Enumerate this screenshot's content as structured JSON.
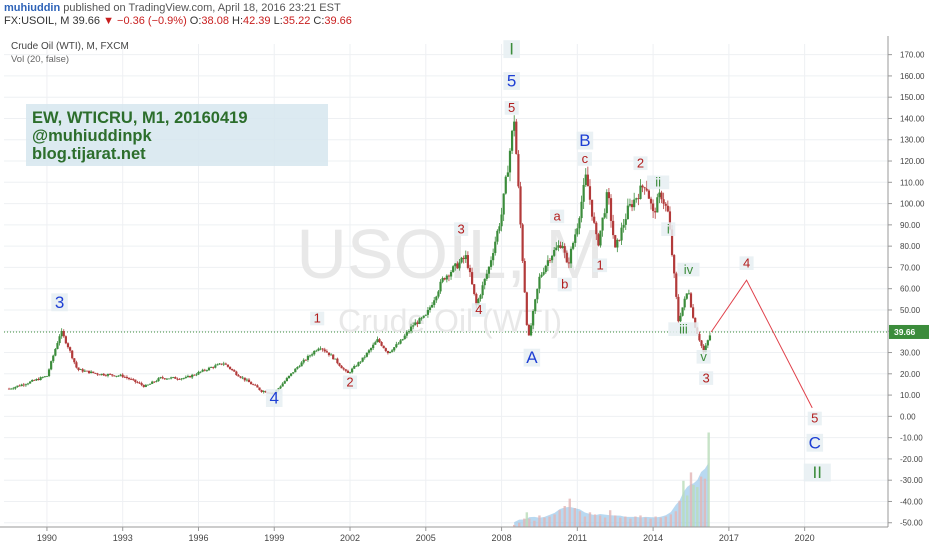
{
  "header": {
    "author": "muhiuddin",
    "published": "published on TradingView.com, April 18, 2016 23:21 EST",
    "symbol": "FX:USOIL, M",
    "last": "39.66",
    "arrow": "▼",
    "change": "−0.36 (−0.9%)",
    "open_label": "O:",
    "open": "38.08",
    "high_label": "H:",
    "high": "42.39",
    "low_label": "L:",
    "low": "35.22",
    "close_label": "C:",
    "close": "39.66"
  },
  "chart_info": {
    "instrument": "Crude Oil (WTI), M, FXCM",
    "volume": "Vol (20, false)",
    "watermark_symbol": "USOIL, M",
    "watermark_name": "Crude Oil (WTI)"
  },
  "annotation_box": {
    "line1": "EW, WTICRU, M1,  20160419",
    "line2": "@muhiuddinpk",
    "line3": "blog.tijarat.net"
  },
  "price_badge": "39.66",
  "colors": {
    "up": "#3b8c3b",
    "down": "#b23a3a",
    "blue_label": "#1e3fd4",
    "red_label": "#b21e1e",
    "green_label": "#3b8c3b",
    "projection": "#e0404a",
    "current_price_line": "#3b8c3b",
    "annotation_bg": "#d6e6ee"
  },
  "chart_data": {
    "type": "line",
    "y_ticks": [
      "170.00",
      "160.00",
      "150.00",
      "140.00",
      "130.00",
      "120.00",
      "110.00",
      "100.00",
      "90.00",
      "80.00",
      "70.00",
      "60.00",
      "50.00",
      "40.00",
      "30.00",
      "20.00",
      "10.00",
      "0.00",
      "-10.00",
      "-20.00",
      "-30.00",
      "-40.00",
      "-50.00"
    ],
    "x_ticks": [
      "1990",
      "1993",
      "1996",
      "1999",
      "2002",
      "2005",
      "2008",
      "2011",
      "2014",
      "2017",
      "2020"
    ],
    "ylim": [
      -52,
      175
    ],
    "xlim": [
      1988.3,
      2023.3
    ],
    "current_price": 39.66,
    "price_anchors": [
      [
        1988.5,
        13
      ],
      [
        1989.3,
        16
      ],
      [
        1990.0,
        19
      ],
      [
        1990.55,
        40
      ],
      [
        1990.8,
        34
      ],
      [
        1991.2,
        22
      ],
      [
        1992.0,
        20
      ],
      [
        1993.0,
        19
      ],
      [
        1993.9,
        14
      ],
      [
        1994.5,
        18
      ],
      [
        1995.5,
        18
      ],
      [
        1996.5,
        23
      ],
      [
        1997.0,
        25
      ],
      [
        1997.5,
        20
      ],
      [
        1998.5,
        12
      ],
      [
        1999.0,
        11
      ],
      [
        1999.9,
        23
      ],
      [
        2000.8,
        33
      ],
      [
        2001.3,
        28
      ],
      [
        2001.9,
        20
      ],
      [
        2002.5,
        27
      ],
      [
        2003.1,
        36
      ],
      [
        2003.5,
        30
      ],
      [
        2004.0,
        35
      ],
      [
        2004.5,
        43
      ],
      [
        2005.0,
        47
      ],
      [
        2005.7,
        65
      ],
      [
        2006.6,
        75
      ],
      [
        2007.0,
        52
      ],
      [
        2007.5,
        70
      ],
      [
        2008.0,
        95
      ],
      [
        2008.5,
        140
      ],
      [
        2008.8,
        80
      ],
      [
        2009.05,
        35
      ],
      [
        2009.5,
        65
      ],
      [
        2009.9,
        75
      ],
      [
        2010.4,
        82
      ],
      [
        2010.6,
        70
      ],
      [
        2011.0,
        90
      ],
      [
        2011.35,
        113
      ],
      [
        2011.8,
        80
      ],
      [
        2012.2,
        105
      ],
      [
        2012.5,
        78
      ],
      [
        2013.0,
        97
      ],
      [
        2013.7,
        110
      ],
      [
        2014.0,
        95
      ],
      [
        2014.3,
        105
      ],
      [
        2014.6,
        95
      ],
      [
        2015.0,
        45
      ],
      [
        2015.4,
        60
      ],
      [
        2015.6,
        45
      ],
      [
        2016.0,
        30
      ],
      [
        2016.15,
        35
      ],
      [
        2016.3,
        39.66
      ]
    ],
    "projection": [
      [
        2016.3,
        39.66
      ],
      [
        2017.7,
        64
      ],
      [
        2020.3,
        4
      ]
    ],
    "wave_labels": [
      {
        "t": "3",
        "x": 1990.5,
        "y": 51,
        "c": "blue"
      },
      {
        "t": "4",
        "x": 1999.0,
        "y": 6,
        "c": "blue"
      },
      {
        "t": "1",
        "x": 2000.7,
        "y": 44,
        "c": "red"
      },
      {
        "t": "2",
        "x": 2002.0,
        "y": 14,
        "c": "red"
      },
      {
        "t": "3",
        "x": 2006.4,
        "y": 86,
        "c": "red"
      },
      {
        "t": "4",
        "x": 2007.1,
        "y": 48,
        "c": "red"
      },
      {
        "t": "I",
        "x": 2008.4,
        "y": 170,
        "c": "green"
      },
      {
        "t": "5",
        "x": 2008.4,
        "y": 155,
        "c": "blue"
      },
      {
        "t": "5",
        "x": 2008.4,
        "y": 143,
        "c": "red"
      },
      {
        "t": "A",
        "x": 2009.2,
        "y": 25,
        "c": "blue"
      },
      {
        "t": "a",
        "x": 2010.2,
        "y": 92,
        "c": "red"
      },
      {
        "t": "b",
        "x": 2010.5,
        "y": 60,
        "c": "red"
      },
      {
        "t": "B",
        "x": 2011.3,
        "y": 127,
        "c": "blue"
      },
      {
        "t": "c",
        "x": 2011.3,
        "y": 119,
        "c": "red"
      },
      {
        "t": "1",
        "x": 2011.9,
        "y": 69,
        "c": "red"
      },
      {
        "t": "2",
        "x": 2013.5,
        "y": 117,
        "c": "red"
      },
      {
        "t": "ii",
        "x": 2014.2,
        "y": 108,
        "c": "green"
      },
      {
        "t": "i",
        "x": 2014.6,
        "y": 86,
        "c": "green"
      },
      {
        "t": "iv",
        "x": 2015.4,
        "y": 67,
        "c": "green"
      },
      {
        "t": "iii",
        "x": 2015.2,
        "y": 39,
        "c": "green"
      },
      {
        "t": "v",
        "x": 2016.0,
        "y": 26,
        "c": "green"
      },
      {
        "t": "3",
        "x": 2016.1,
        "y": 16,
        "c": "red"
      },
      {
        "t": "4",
        "x": 2017.7,
        "y": 70,
        "c": "red"
      },
      {
        "t": "5",
        "x": 2020.4,
        "y": -3,
        "c": "red"
      },
      {
        "t": "C",
        "x": 2020.4,
        "y": -15,
        "c": "blue"
      },
      {
        "t": "II",
        "x": 2020.5,
        "y": -29,
        "c": "green"
      }
    ],
    "volume_bars": [
      [
        2008.5,
        2
      ],
      [
        2008.7,
        4
      ],
      [
        2008.9,
        8
      ],
      [
        2009.0,
        14
      ],
      [
        2009.1,
        8
      ],
      [
        2009.3,
        6
      ],
      [
        2009.5,
        11
      ],
      [
        2009.7,
        9
      ],
      [
        2009.9,
        10
      ],
      [
        2010.1,
        12
      ],
      [
        2010.3,
        16
      ],
      [
        2010.5,
        20
      ],
      [
        2010.7,
        27
      ],
      [
        2010.9,
        18
      ],
      [
        2011.1,
        15
      ],
      [
        2011.3,
        10
      ],
      [
        2011.5,
        14
      ],
      [
        2011.7,
        12
      ],
      [
        2011.9,
        11
      ],
      [
        2012.1,
        9
      ],
      [
        2012.3,
        16
      ],
      [
        2012.5,
        11
      ],
      [
        2012.7,
        9
      ],
      [
        2012.9,
        10
      ],
      [
        2013.1,
        8
      ],
      [
        2013.3,
        10
      ],
      [
        2013.5,
        11
      ],
      [
        2013.7,
        9
      ],
      [
        2013.9,
        8
      ],
      [
        2014.1,
        10
      ],
      [
        2014.3,
        9
      ],
      [
        2014.5,
        10
      ],
      [
        2014.7,
        12
      ],
      [
        2014.9,
        15
      ],
      [
        2015.05,
        25
      ],
      [
        2015.2,
        44
      ],
      [
        2015.35,
        30
      ],
      [
        2015.5,
        52
      ],
      [
        2015.6,
        40
      ],
      [
        2015.75,
        38
      ],
      [
        2015.9,
        48
      ],
      [
        2016.05,
        46
      ],
      [
        2016.2,
        90
      ]
    ]
  }
}
